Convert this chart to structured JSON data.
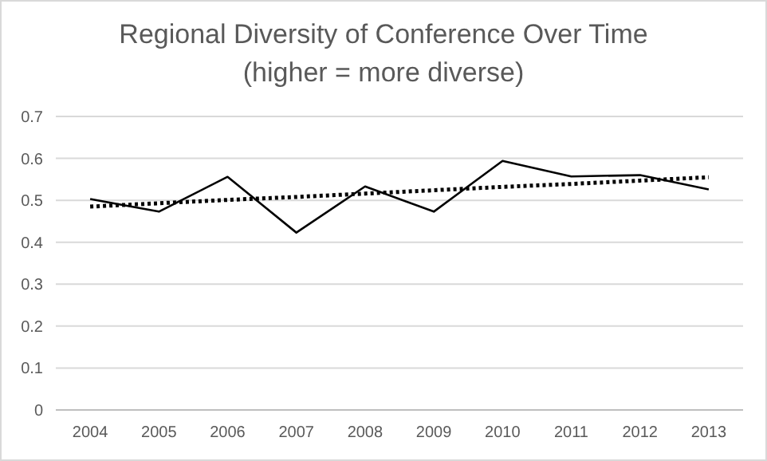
{
  "chart_data": {
    "type": "line",
    "title": "Regional Diversity of Conference Over Time",
    "subtitle": "(higher = more diverse)",
    "categories": [
      "2004",
      "2005",
      "2006",
      "2007",
      "2008",
      "2009",
      "2010",
      "2011",
      "2012",
      "2013"
    ],
    "series": [
      {
        "color": "#000000",
        "line_style": "solid",
        "values": [
          0.503,
          0.473,
          0.556,
          0.423,
          0.533,
          0.473,
          0.594,
          0.557,
          0.56,
          0.526
        ]
      },
      {
        "color": "#000000",
        "line_style": "dotted",
        "values": [
          0.485,
          0.493,
          0.501,
          0.508,
          0.516,
          0.524,
          0.532,
          0.539,
          0.547,
          0.555
        ]
      }
    ],
    "ylim": [
      0,
      0.7
    ],
    "yticks": [
      0,
      0.1,
      0.2,
      0.3,
      0.4,
      0.5,
      0.6,
      0.7
    ],
    "grid": "y",
    "marker": "none"
  }
}
